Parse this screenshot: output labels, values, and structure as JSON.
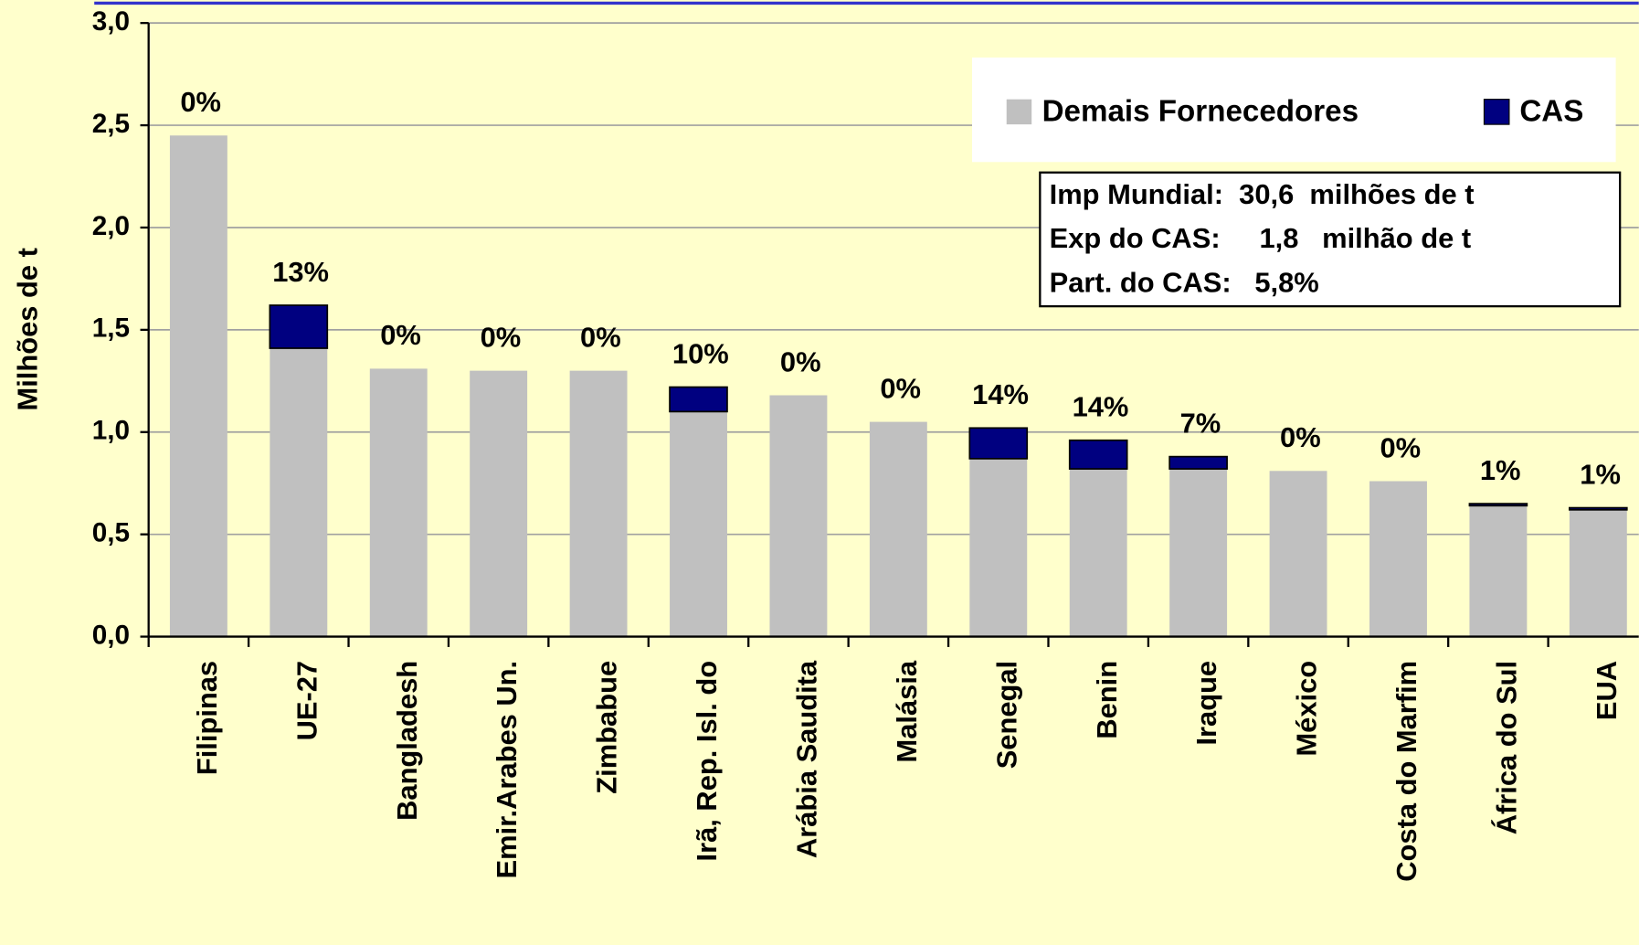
{
  "chart_data": {
    "type": "stacked_bar",
    "y_label": "Milhões de t",
    "categories": [
      "Filipinas",
      "UE-27",
      "Bangladesh",
      "Emir.Arabes Un.",
      "Zimbabue",
      "Irã, Rep. Isl. do",
      "Arábia Saudita",
      "Malásia",
      "Senegal",
      "Benin",
      "Iraque",
      "México",
      "Costa do Marfim",
      "África do Sul",
      "EUA"
    ],
    "series": [
      {
        "name": "Demais Fornecedores",
        "color": "#c0c0c0",
        "values": [
          2.45,
          1.41,
          1.31,
          1.3,
          1.3,
          1.1,
          1.18,
          1.05,
          0.87,
          0.82,
          0.82,
          0.81,
          0.76,
          0.64,
          0.62
        ]
      },
      {
        "name": "CAS",
        "color": "#000080",
        "values": [
          0,
          0.21,
          0,
          0,
          0,
          0.12,
          0,
          0,
          0.15,
          0.14,
          0.06,
          0,
          0,
          0.01,
          0.01
        ]
      }
    ],
    "labels": [
      "0%",
      "13%",
      "0%",
      "0%",
      "0%",
      "10%",
      "0%",
      "0%",
      "14%",
      "14%",
      "7%",
      "0%",
      "0%",
      "1%",
      "1%"
    ],
    "ylim": [
      0,
      3
    ],
    "yticks": [
      {
        "value": 0,
        "label": "0,0"
      },
      {
        "value": 0.5,
        "label": "0,5"
      },
      {
        "value": 1,
        "label": "1,0"
      },
      {
        "value": 1.5,
        "label": "1,5"
      },
      {
        "value": 2,
        "label": "2,0"
      },
      {
        "value": 2.5,
        "label": "2,5"
      },
      {
        "value": 3,
        "label": "3,0"
      }
    ],
    "grid": true,
    "info_box": [
      "Imp Mundial:  30,6  milhões de t",
      "Exp do CAS:     1,8   milhão de t",
      "Part. do CAS:   5,8%"
    ]
  }
}
